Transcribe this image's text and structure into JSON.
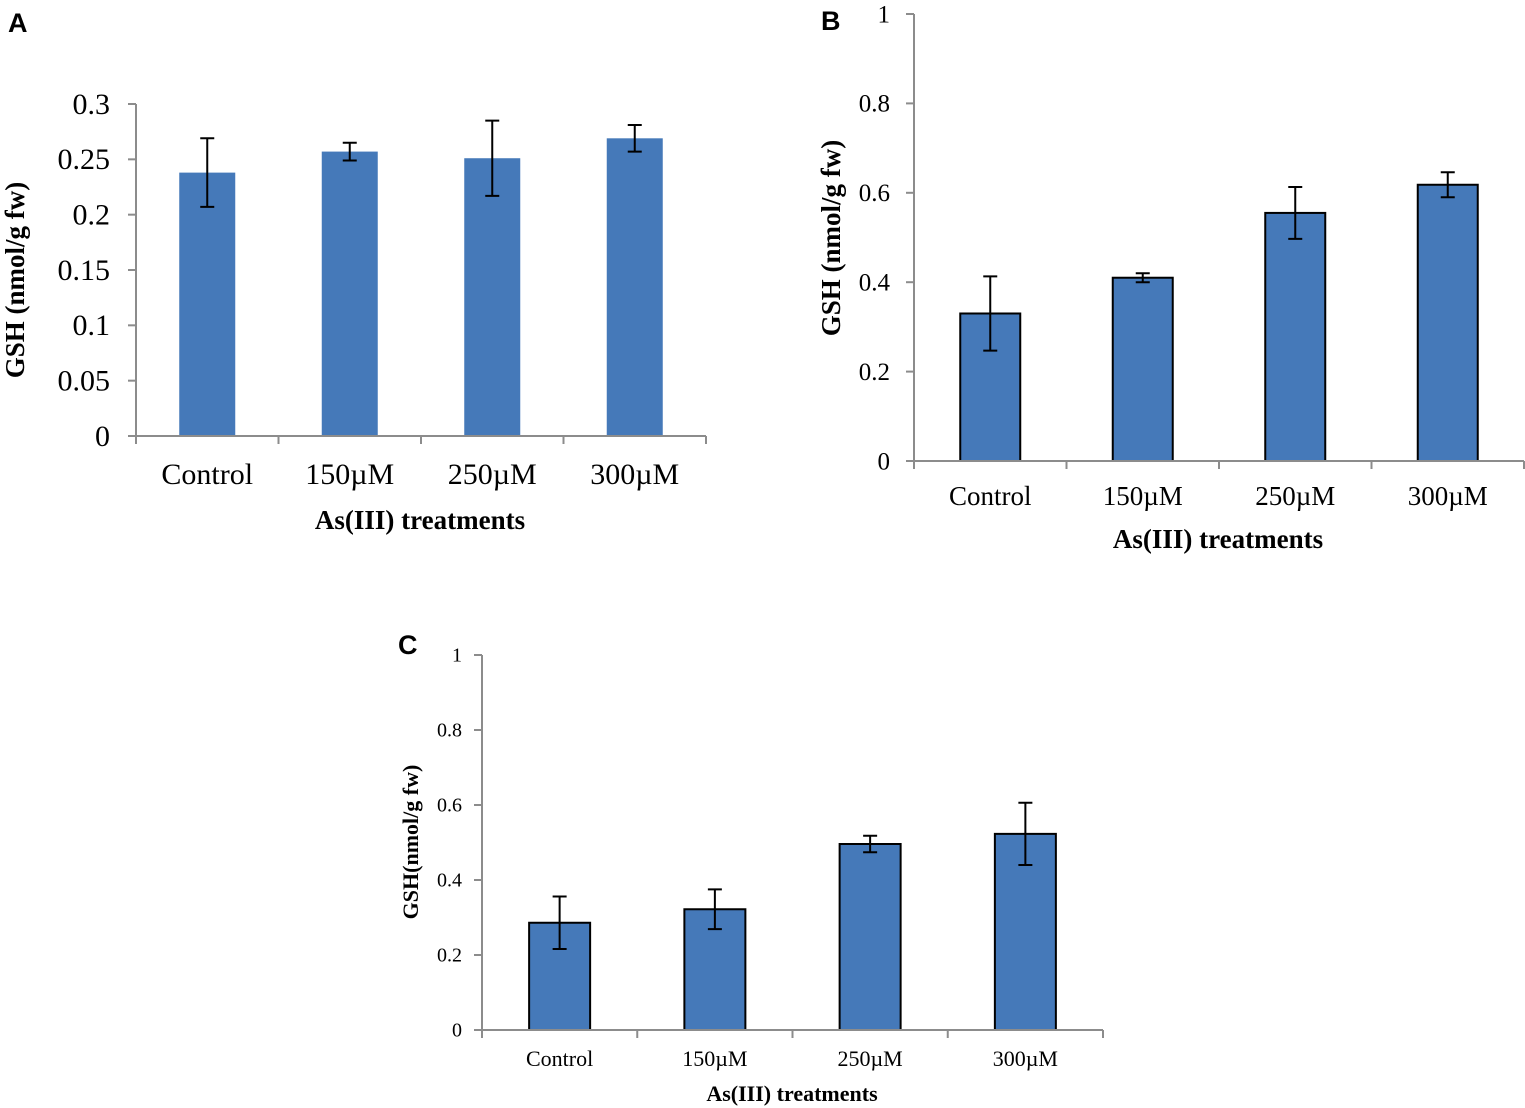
{
  "bar_color": "#4579b9",
  "chart_data": [
    {
      "panel": "A",
      "type": "bar",
      "categories": [
        "Control",
        "150µM",
        "250µM",
        "300µM"
      ],
      "values": [
        0.238,
        0.257,
        0.251,
        0.269
      ],
      "errors": [
        0.031,
        0.008,
        0.034,
        0.012
      ],
      "ylim": [
        0,
        0.3
      ],
      "yticks": [
        "0",
        "0.05",
        "0.1",
        "0.15",
        "0.2",
        "0.25",
        "0.3"
      ],
      "xlabel": "As(III) treatments",
      "ylabel": "GSH (nmol/g fw)",
      "bar_outline": false
    },
    {
      "panel": "B",
      "type": "bar",
      "categories": [
        "Control",
        "150µM",
        "250µM",
        "300µM"
      ],
      "values": [
        0.33,
        0.41,
        0.555,
        0.618
      ],
      "errors": [
        0.083,
        0.01,
        0.058,
        0.028
      ],
      "ylim": [
        0,
        1
      ],
      "yticks": [
        "0",
        "0.2",
        "0.4",
        "0.6",
        "0.8",
        "1"
      ],
      "xlabel": "As(III) treatments",
      "ylabel": "GSH (nmol/g fw)",
      "bar_outline": true
    },
    {
      "panel": "C",
      "type": "bar",
      "categories": [
        "Control",
        "150µM",
        "250µM",
        "300µM"
      ],
      "values": [
        0.286,
        0.322,
        0.496,
        0.523
      ],
      "errors": [
        0.07,
        0.053,
        0.022,
        0.083
      ],
      "ylim": [
        0,
        1
      ],
      "yticks": [
        "0",
        "0.2",
        "0.4",
        "0.6",
        "0.8",
        "1"
      ],
      "xlabel": "As(III) treatments",
      "ylabel": "GSH(nmol/g fw)",
      "bar_outline": true
    }
  ]
}
